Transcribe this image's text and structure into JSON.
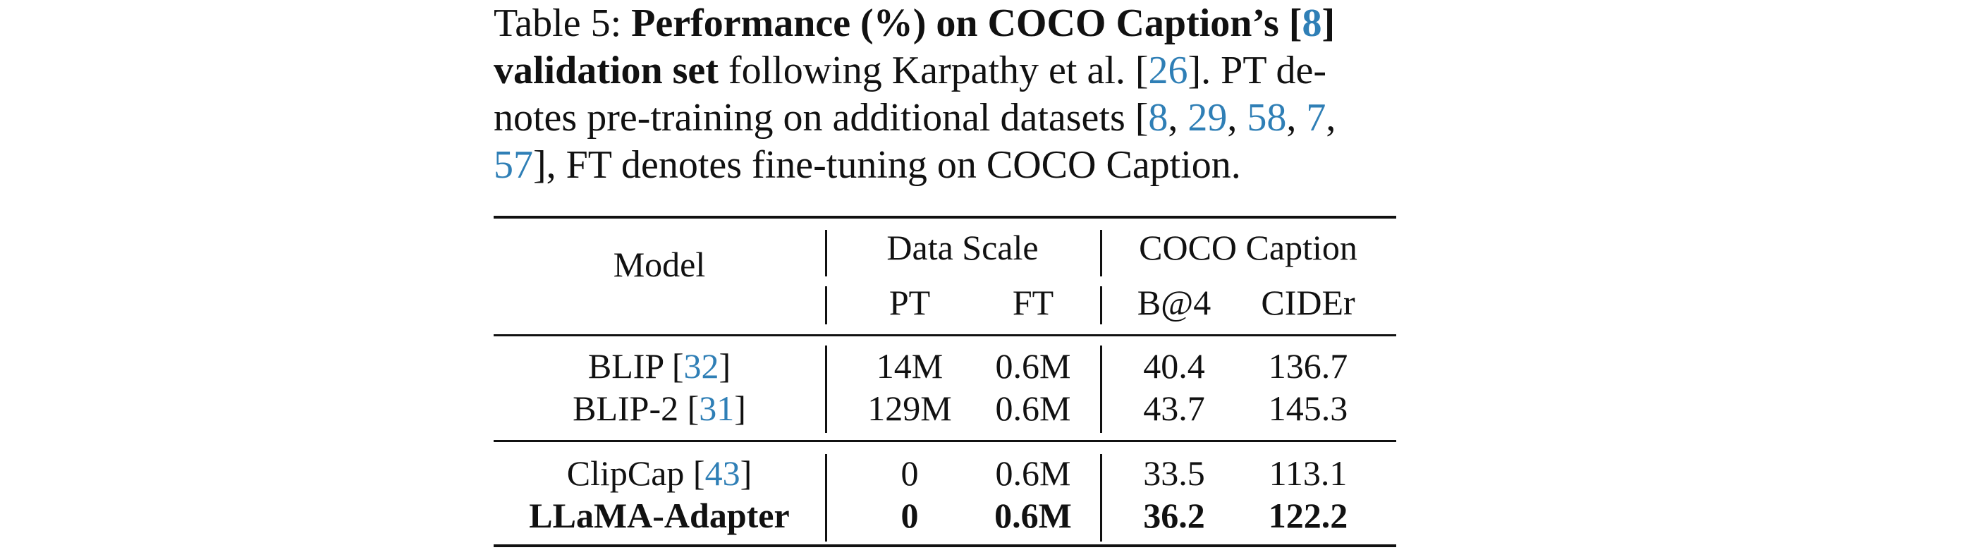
{
  "caption": {
    "prefix": "Table 5: ",
    "bold_a": "Performance (%) on COCO Caption’s [",
    "cite_8": "8",
    "bold_b": "]",
    "bold_c": "validation set",
    "text_a": " following Karpathy et al. [",
    "cite_26": "26",
    "text_b": "]. PT de-",
    "line3_a": "notes pre-training on additional datasets [",
    "line3_c8": "8",
    "sep1": ", ",
    "line3_c29": "29",
    "sep2": ", ",
    "line3_c58": "58",
    "sep3": ", ",
    "line3_c7": "7",
    "sep4": ",",
    "line4_c57": "57",
    "line4_text": "], FT denotes fine-tuning on COCO Caption."
  },
  "table": {
    "header": {
      "model": "Model",
      "data_scale": "Data Scale",
      "coco_caption": "COCO Caption",
      "pt": "PT",
      "ft": "FT",
      "b4": "B@4",
      "cider": "CIDEr"
    },
    "rows": [
      {
        "model": "BLIP [",
        "cite": "32",
        "close": "]",
        "pt": "14M",
        "ft": "0.6M",
        "b4": "40.4",
        "cider": "136.7"
      },
      {
        "model": "BLIP-2 [",
        "cite": "31",
        "close": "]",
        "pt": "129M",
        "ft": "0.6M",
        "b4": "43.7",
        "cider": "145.3"
      },
      {
        "model": "ClipCap [",
        "cite": "43",
        "close": "]",
        "pt": "0",
        "ft": "0.6M",
        "b4": "33.5",
        "cider": "113.1"
      },
      {
        "model": "LLaMA-Adapter",
        "pt": "0",
        "ft": "0.6M",
        "b4": "36.2",
        "cider": "122.2"
      }
    ]
  },
  "colors": {
    "citation": "#2f7fb6",
    "text": "#111111"
  }
}
